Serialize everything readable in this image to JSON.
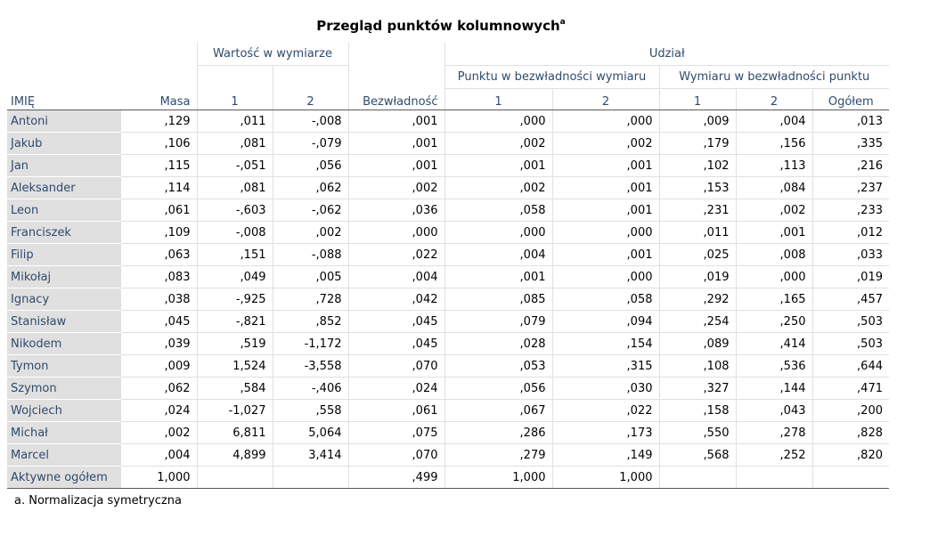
{
  "title": "Przegląd punktów kolumnowych",
  "title_superscript": "a",
  "headers": {
    "wartosc": "Wartość w wymiarze",
    "udzial": "Udział",
    "punktu": "Punktu w bezwładności wymiaru",
    "wymiaru": "Wymiaru w bezwładności punktu",
    "imie": "IMIĘ",
    "masa": "Masa",
    "d1": "1",
    "d2": "2",
    "bezwladnosc": "Bezwładność",
    "p1": "1",
    "p2": "2",
    "w1": "1",
    "w2": "2",
    "ogolem": "Ogółem"
  },
  "rows": [
    {
      "name": "Antoni",
      "cells": [
        ",129",
        ",011",
        "-,008",
        ",001",
        ",000",
        ",000",
        ",009",
        ",004",
        ",013"
      ]
    },
    {
      "name": "Jakub",
      "cells": [
        ",106",
        ",081",
        "-,079",
        ",001",
        ",002",
        ",002",
        ",179",
        ",156",
        ",335"
      ]
    },
    {
      "name": "Jan",
      "cells": [
        ",115",
        "-,051",
        ",056",
        ",001",
        ",001",
        ",001",
        ",102",
        ",113",
        ",216"
      ]
    },
    {
      "name": "Aleksander",
      "cells": [
        ",114",
        ",081",
        ",062",
        ",002",
        ",002",
        ",001",
        ",153",
        ",084",
        ",237"
      ]
    },
    {
      "name": "Leon",
      "cells": [
        ",061",
        "-,603",
        "-,062",
        ",036",
        ",058",
        ",001",
        ",231",
        ",002",
        ",233"
      ]
    },
    {
      "name": "Franciszek",
      "cells": [
        ",109",
        "-,008",
        ",002",
        ",000",
        ",000",
        ",000",
        ",011",
        ",001",
        ",012"
      ]
    },
    {
      "name": "Filip",
      "cells": [
        ",063",
        ",151",
        "-,088",
        ",022",
        ",004",
        ",001",
        ",025",
        ",008",
        ",033"
      ]
    },
    {
      "name": "Mikołaj",
      "cells": [
        ",083",
        ",049",
        ",005",
        ",004",
        ",001",
        ",000",
        ",019",
        ",000",
        ",019"
      ]
    },
    {
      "name": "Ignacy",
      "cells": [
        ",038",
        "-,925",
        ",728",
        ",042",
        ",085",
        ",058",
        ",292",
        ",165",
        ",457"
      ]
    },
    {
      "name": "Stanisław",
      "cells": [
        ",045",
        "-,821",
        ",852",
        ",045",
        ",079",
        ",094",
        ",254",
        ",250",
        ",503"
      ]
    },
    {
      "name": "Nikodem",
      "cells": [
        ",039",
        ",519",
        "-1,172",
        ",045",
        ",028",
        ",154",
        ",089",
        ",414",
        ",503"
      ]
    },
    {
      "name": "Tymon",
      "cells": [
        ",009",
        "1,524",
        "-3,558",
        ",070",
        ",053",
        ",315",
        ",108",
        ",536",
        ",644"
      ]
    },
    {
      "name": "Szymon",
      "cells": [
        ",062",
        ",584",
        "-,406",
        ",024",
        ",056",
        ",030",
        ",327",
        ",144",
        ",471"
      ]
    },
    {
      "name": "Wojciech",
      "cells": [
        ",024",
        "-1,027",
        ",558",
        ",061",
        ",067",
        ",022",
        ",158",
        ",043",
        ",200"
      ]
    },
    {
      "name": "Michał",
      "cells": [
        ",002",
        "6,811",
        "5,064",
        ",075",
        ",286",
        ",173",
        ",550",
        ",278",
        ",828"
      ]
    },
    {
      "name": "Marcel",
      "cells": [
        ",004",
        "4,899",
        "3,414",
        ",070",
        ",279",
        ",149",
        ",568",
        ",252",
        ",820"
      ]
    },
    {
      "name": "Aktywne ogółem",
      "cells": [
        "1,000",
        "",
        "",
        ",499",
        "1,000",
        "1,000",
        "",
        "",
        ""
      ]
    }
  ],
  "footnote": "a. Normalizacja symetryczna"
}
